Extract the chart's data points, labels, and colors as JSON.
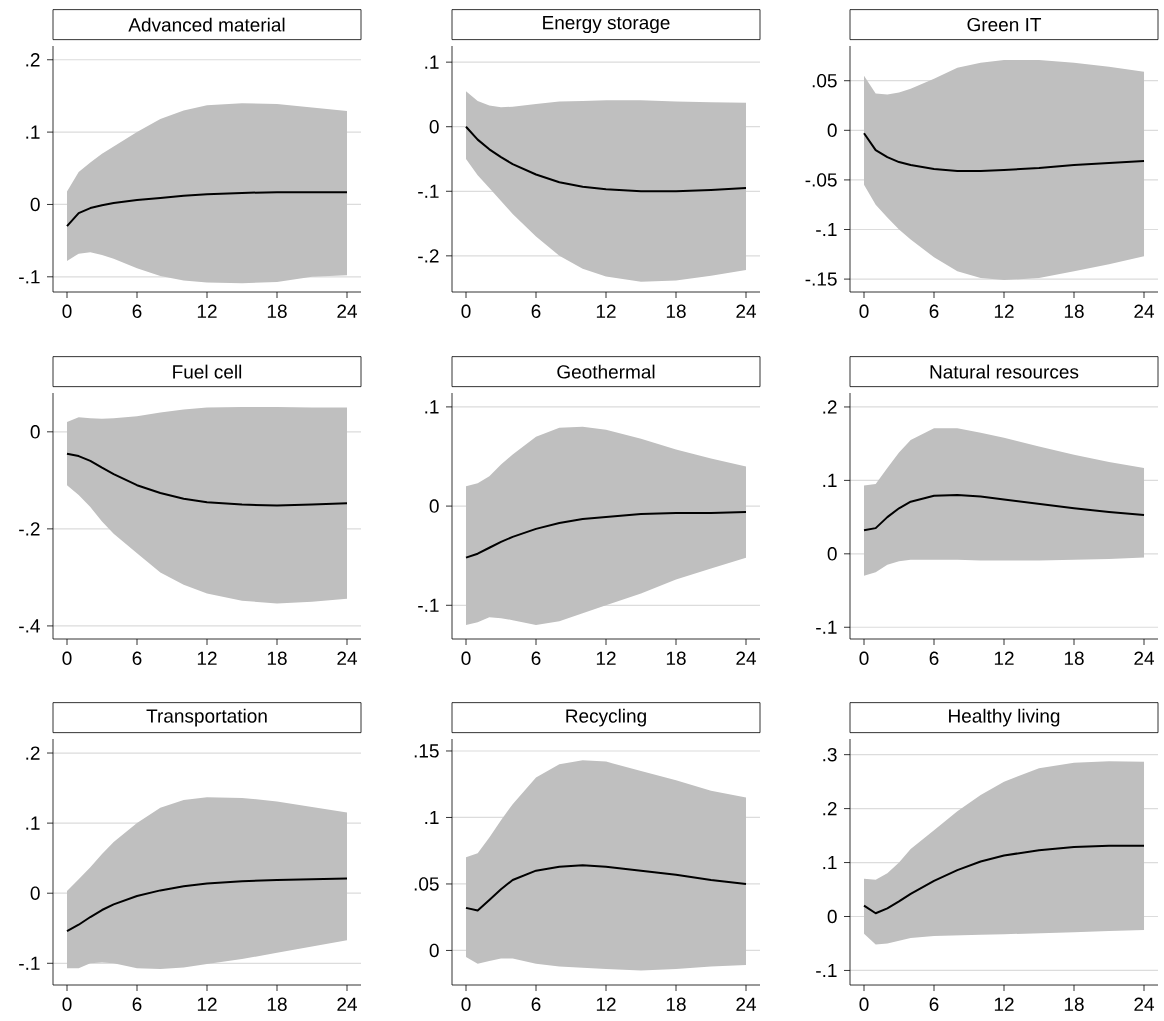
{
  "chart_data": [
    {
      "type": "line",
      "title": "Advanced material",
      "x": [
        0,
        1,
        2,
        3,
        4,
        6,
        8,
        10,
        12,
        15,
        18,
        21,
        24
      ],
      "xlim": [
        -1.2,
        25.2
      ],
      "xticks": [
        0,
        6,
        12,
        18,
        24
      ],
      "ylim": [
        -0.121,
        0.219
      ],
      "yticks": [
        {
          "value": -0.1,
          "label": "-.1"
        },
        0,
        {
          "value": 0.1,
          "label": ".1"
        },
        {
          "value": 0.2,
          "label": ".2"
        }
      ],
      "grid": "y",
      "series": [
        {
          "color": "#000000",
          "values": [
            -0.03,
            -0.012,
            -0.005,
            -0.001,
            0.002,
            0.006,
            0.009,
            0.012,
            0.014,
            0.016,
            0.017,
            0.017,
            0.017
          ],
          "lower": [
            -0.078,
            -0.068,
            -0.066,
            -0.07,
            -0.075,
            -0.088,
            -0.099,
            -0.105,
            -0.108,
            -0.109,
            -0.107,
            -0.1,
            -0.098
          ],
          "upper": [
            0.018,
            0.045,
            0.058,
            0.07,
            0.08,
            0.1,
            0.118,
            0.13,
            0.137,
            0.14,
            0.139,
            0.134,
            0.129
          ]
        }
      ]
    },
    {
      "type": "line",
      "title": "Energy storage",
      "x": [
        0,
        1,
        2,
        3,
        4,
        6,
        8,
        10,
        12,
        15,
        18,
        21,
        24
      ],
      "xlim": [
        -1.2,
        25.2
      ],
      "xticks": [
        0,
        6,
        12,
        18,
        24
      ],
      "ylim": [
        -0.256,
        0.125
      ],
      "yticks": [
        {
          "value": -0.2,
          "label": "-.2"
        },
        {
          "value": -0.1,
          "label": "-.1"
        },
        0,
        {
          "value": 0.1,
          "label": ".1"
        }
      ],
      "grid": "y",
      "series": [
        {
          "color": "#000000",
          "values": [
            0,
            -0.02,
            -0.035,
            -0.047,
            -0.058,
            -0.074,
            -0.086,
            -0.093,
            -0.097,
            -0.1,
            -0.1,
            -0.098,
            -0.095
          ],
          "lower": [
            -0.05,
            -0.075,
            -0.095,
            -0.115,
            -0.135,
            -0.17,
            -0.2,
            -0.22,
            -0.232,
            -0.24,
            -0.238,
            -0.231,
            -0.222
          ],
          "upper": [
            0.055,
            0.04,
            0.033,
            0.03,
            0.031,
            0.035,
            0.039,
            0.04,
            0.041,
            0.041,
            0.039,
            0.038,
            0.037
          ]
        }
      ]
    },
    {
      "type": "line",
      "title": "Green IT",
      "x": [
        0,
        1,
        2,
        3,
        4,
        6,
        8,
        10,
        12,
        15,
        18,
        21,
        24
      ],
      "xlim": [
        -1.2,
        25.2
      ],
      "xticks": [
        0,
        6,
        12,
        18,
        24
      ],
      "ylim": [
        -0.163,
        0.085
      ],
      "yticks": [
        {
          "value": -0.15,
          "label": "-.15"
        },
        {
          "value": -0.1,
          "label": "-.1"
        },
        {
          "value": -0.05,
          "label": "-.05"
        },
        0,
        {
          "value": 0.05,
          "label": ".05"
        }
      ],
      "grid": "y",
      "series": [
        {
          "color": "#000000",
          "values": [
            -0.003,
            -0.02,
            -0.027,
            -0.032,
            -0.035,
            -0.039,
            -0.041,
            -0.041,
            -0.04,
            -0.038,
            -0.035,
            -0.033,
            -0.031
          ],
          "lower": [
            -0.055,
            -0.075,
            -0.088,
            -0.1,
            -0.11,
            -0.128,
            -0.142,
            -0.149,
            -0.151,
            -0.149,
            -0.142,
            -0.135,
            -0.127
          ],
          "upper": [
            0.055,
            0.037,
            0.036,
            0.038,
            0.042,
            0.052,
            0.063,
            0.068,
            0.071,
            0.071,
            0.068,
            0.064,
            0.059
          ]
        }
      ]
    },
    {
      "type": "line",
      "title": "Fuel cell",
      "x": [
        0,
        1,
        2,
        3,
        4,
        6,
        8,
        10,
        12,
        15,
        18,
        21,
        24
      ],
      "xlim": [
        -1.2,
        25.2
      ],
      "xticks": [
        0,
        6,
        12,
        18,
        24
      ],
      "ylim": [
        -0.427,
        0.08
      ],
      "yticks": [
        {
          "value": -0.4,
          "label": "-.4"
        },
        {
          "value": -0.2,
          "label": "-.2"
        },
        0
      ],
      "grid": "y",
      "series": [
        {
          "color": "#000000",
          "values": [
            -0.045,
            -0.05,
            -0.06,
            -0.074,
            -0.087,
            -0.11,
            -0.126,
            -0.138,
            -0.145,
            -0.15,
            -0.152,
            -0.15,
            -0.147
          ],
          "lower": [
            -0.11,
            -0.13,
            -0.155,
            -0.185,
            -0.21,
            -0.25,
            -0.29,
            -0.315,
            -0.333,
            -0.348,
            -0.354,
            -0.35,
            -0.344
          ],
          "upper": [
            0.02,
            0.03,
            0.028,
            0.027,
            0.028,
            0.032,
            0.04,
            0.046,
            0.05,
            0.051,
            0.051,
            0.05,
            0.05
          ]
        }
      ]
    },
    {
      "type": "line",
      "title": "Geothermal",
      "x": [
        0,
        1,
        2,
        3,
        4,
        6,
        8,
        10,
        12,
        15,
        18,
        21,
        24
      ],
      "xlim": [
        -1.2,
        25.2
      ],
      "xticks": [
        0,
        6,
        12,
        18,
        24
      ],
      "ylim": [
        -0.134,
        0.114
      ],
      "yticks": [
        {
          "value": -0.1,
          "label": "-.1"
        },
        0,
        {
          "value": 0.1,
          "label": ".1"
        }
      ],
      "grid": "y",
      "series": [
        {
          "color": "#000000",
          "values": [
            -0.052,
            -0.048,
            -0.042,
            -0.036,
            -0.031,
            -0.023,
            -0.017,
            -0.013,
            -0.011,
            -0.008,
            -0.007,
            -0.007,
            -0.006
          ],
          "lower": [
            -0.12,
            -0.117,
            -0.112,
            -0.113,
            -0.115,
            -0.12,
            -0.116,
            -0.108,
            -0.1,
            -0.088,
            -0.074,
            -0.063,
            -0.052
          ],
          "upper": [
            0.02,
            0.023,
            0.03,
            0.042,
            0.052,
            0.07,
            0.079,
            0.08,
            0.077,
            0.068,
            0.057,
            0.048,
            0.04
          ]
        }
      ]
    },
    {
      "type": "line",
      "title": "Natural resources",
      "x": [
        0,
        1,
        2,
        3,
        4,
        6,
        8,
        10,
        12,
        15,
        18,
        21,
        24
      ],
      "xlim": [
        -1.2,
        25.2
      ],
      "xticks": [
        0,
        6,
        12,
        18,
        24
      ],
      "ylim": [
        -0.116,
        0.219
      ],
      "yticks": [
        {
          "value": -0.1,
          "label": "-.1"
        },
        0,
        {
          "value": 0.1,
          "label": ".1"
        },
        {
          "value": 0.2,
          "label": ".2"
        }
      ],
      "grid": "y",
      "series": [
        {
          "color": "#000000",
          "values": [
            0.032,
            0.035,
            0.05,
            0.062,
            0.071,
            0.079,
            0.08,
            0.078,
            0.074,
            0.068,
            0.062,
            0.057,
            0.053
          ],
          "lower": [
            -0.03,
            -0.025,
            -0.015,
            -0.01,
            -0.008,
            -0.008,
            -0.008,
            -0.009,
            -0.009,
            -0.009,
            -0.008,
            -0.007,
            -0.005
          ],
          "upper": [
            0.093,
            0.095,
            0.117,
            0.138,
            0.155,
            0.171,
            0.171,
            0.165,
            0.158,
            0.146,
            0.135,
            0.125,
            0.117
          ]
        }
      ]
    },
    {
      "type": "line",
      "title": "Transportation",
      "x": [
        0,
        1,
        2,
        3,
        4,
        6,
        8,
        10,
        12,
        15,
        18,
        21,
        24
      ],
      "xlim": [
        -1.2,
        25.2
      ],
      "xticks": [
        0,
        6,
        12,
        18,
        24
      ],
      "ylim": [
        -0.131,
        0.22
      ],
      "yticks": [
        {
          "value": -0.1,
          "label": "-.1"
        },
        0,
        {
          "value": 0.1,
          "label": ".1"
        },
        {
          "value": 0.2,
          "label": ".2"
        }
      ],
      "grid": "y",
      "series": [
        {
          "color": "#000000",
          "values": [
            -0.054,
            -0.045,
            -0.034,
            -0.024,
            -0.016,
            -0.004,
            0.004,
            0.01,
            0.014,
            0.017,
            0.019,
            0.02,
            0.021
          ],
          "lower": [
            -0.107,
            -0.107,
            -0.1,
            -0.099,
            -0.1,
            -0.107,
            -0.108,
            -0.106,
            -0.101,
            -0.094,
            -0.085,
            -0.076,
            -0.067
          ],
          "upper": [
            0.003,
            0.02,
            0.037,
            0.056,
            0.073,
            0.1,
            0.122,
            0.133,
            0.137,
            0.136,
            0.131,
            0.123,
            0.115
          ]
        }
      ]
    },
    {
      "type": "line",
      "title": "Recycling",
      "x": [
        0,
        1,
        2,
        3,
        4,
        6,
        8,
        10,
        12,
        15,
        18,
        21,
        24
      ],
      "xlim": [
        -1.2,
        25.2
      ],
      "xticks": [
        0,
        6,
        12,
        18,
        24
      ],
      "ylim": [
        -0.026,
        0.159
      ],
      "yticks": [
        0,
        {
          "value": 0.05,
          "label": ".05"
        },
        {
          "value": 0.1,
          "label": ".1"
        },
        {
          "value": 0.15,
          "label": ".15"
        }
      ],
      "grid": "y",
      "series": [
        {
          "color": "#000000",
          "values": [
            0.032,
            0.03,
            0.038,
            0.046,
            0.053,
            0.06,
            0.063,
            0.064,
            0.063,
            0.06,
            0.057,
            0.053,
            0.05
          ],
          "lower": [
            -0.005,
            -0.01,
            -0.008,
            -0.006,
            -0.006,
            -0.01,
            -0.012,
            -0.013,
            -0.014,
            -0.015,
            -0.014,
            -0.012,
            -0.011
          ],
          "upper": [
            0.07,
            0.073,
            0.085,
            0.098,
            0.11,
            0.13,
            0.14,
            0.143,
            0.142,
            0.135,
            0.128,
            0.12,
            0.115
          ]
        }
      ]
    },
    {
      "type": "line",
      "title": "Healthy living",
      "x": [
        0,
        1,
        2,
        3,
        4,
        6,
        8,
        10,
        12,
        15,
        18,
        21,
        24
      ],
      "xlim": [
        -1.2,
        25.2
      ],
      "xticks": [
        0,
        6,
        12,
        18,
        24
      ],
      "ylim": [
        -0.127,
        0.329
      ],
      "yticks": [
        {
          "value": -0.1,
          "label": "-.1"
        },
        0,
        {
          "value": 0.1,
          "label": ".1"
        },
        {
          "value": 0.2,
          "label": ".2"
        },
        {
          "value": 0.3,
          "label": ".3"
        }
      ],
      "grid": "y",
      "series": [
        {
          "color": "#000000",
          "values": [
            0.02,
            0.006,
            0.015,
            0.028,
            0.042,
            0.066,
            0.086,
            0.102,
            0.113,
            0.123,
            0.129,
            0.131,
            0.131
          ],
          "lower": [
            -0.032,
            -0.052,
            -0.05,
            -0.045,
            -0.04,
            -0.036,
            -0.035,
            -0.034,
            -0.033,
            -0.031,
            -0.029,
            -0.027,
            -0.025
          ],
          "upper": [
            0.07,
            0.068,
            0.08,
            0.1,
            0.125,
            0.16,
            0.195,
            0.225,
            0.25,
            0.275,
            0.285,
            0.288,
            0.287
          ]
        }
      ]
    }
  ]
}
